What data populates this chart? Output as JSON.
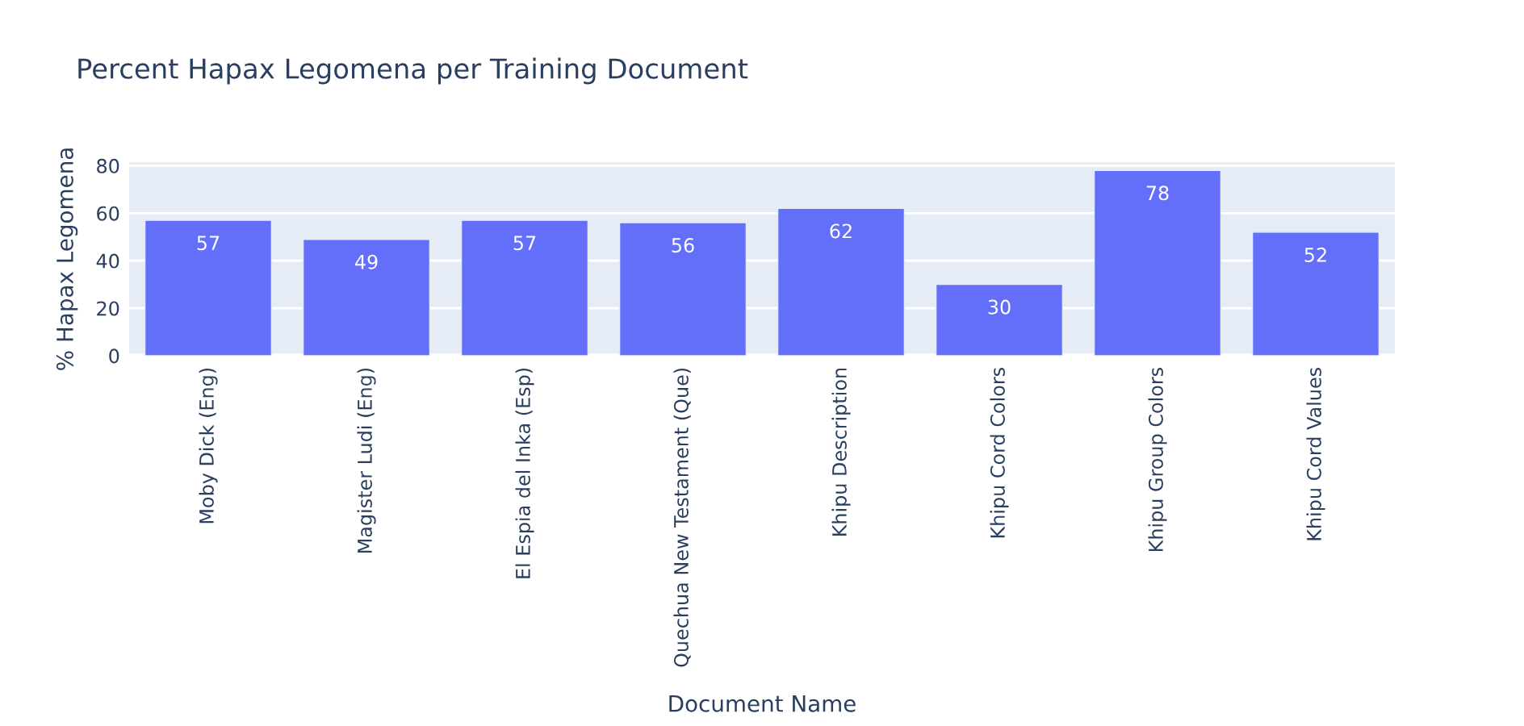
{
  "chart_data": {
    "type": "bar",
    "title": "Percent Hapax Legomena per Training Document",
    "xlabel": "Document Name",
    "ylabel": "% Hapax Legomena",
    "categories": [
      "Moby Dick (Eng)",
      "Magister Ludi (Eng)",
      "El Espia del Inka (Esp)",
      "Quechua New Testament (Que)",
      "Khipu Description",
      "Khipu Cord Colors",
      "Khipu Group Colors",
      "Khipu Cord Values"
    ],
    "values": [
      57,
      49,
      57,
      56,
      62,
      30,
      78,
      52
    ],
    "color": "#636efa",
    "ylim": [
      0,
      81.5
    ],
    "yticks": [
      0,
      20,
      40,
      60,
      80
    ],
    "grid": "y",
    "data_labels": true
  }
}
